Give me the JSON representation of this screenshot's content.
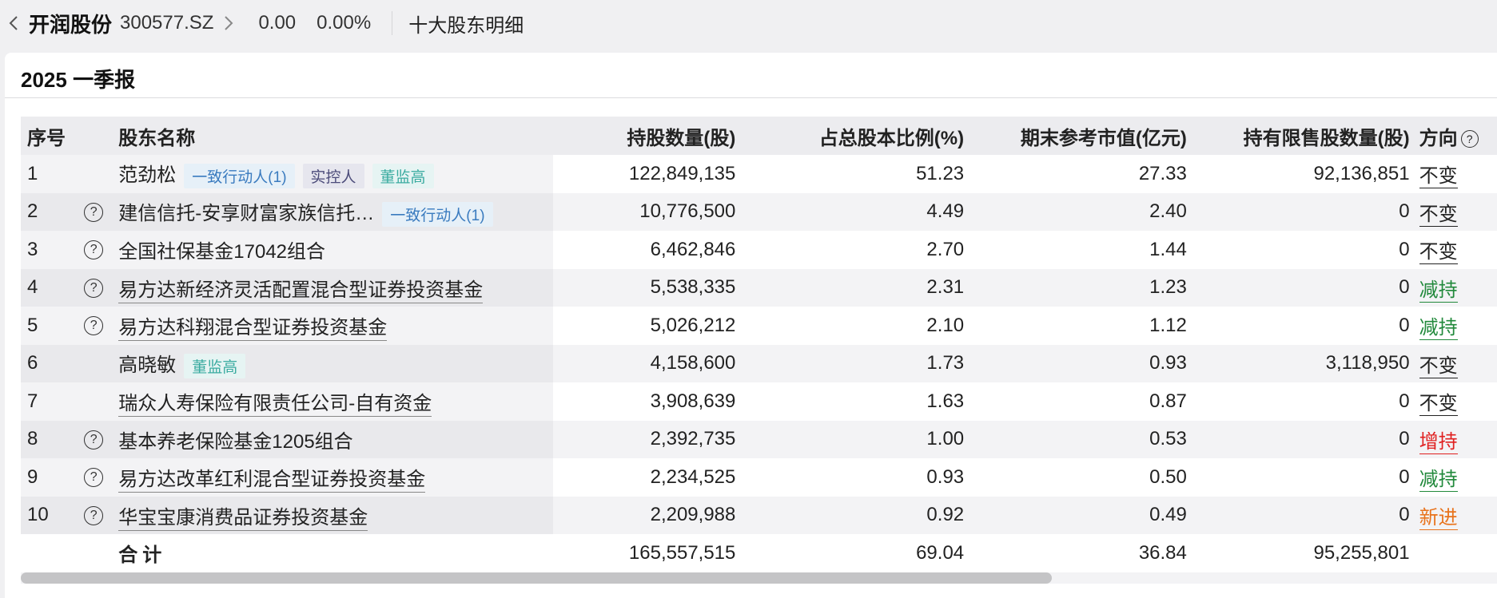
{
  "header": {
    "stock_name": "开润股份",
    "stock_code": "300577.SZ",
    "price": "0.00",
    "change_pct": "0.00%",
    "page_title": "十大股东明细"
  },
  "report": {
    "period": "2025 一季报"
  },
  "table": {
    "columns": [
      "序号",
      "",
      "股东名称",
      "持股数量(股)",
      "占总股本比例(%)",
      "期末参考市值(亿元)",
      "持有限售股数量(股)",
      "方向"
    ],
    "rows": [
      {
        "no": "1",
        "help": false,
        "name": "范劲松",
        "underline": false,
        "tags": [
          {
            "text": "一致行动人(1)",
            "kind": "act"
          },
          {
            "text": "实控人",
            "kind": "ctrl"
          },
          {
            "text": "董监高",
            "kind": "dir"
          }
        ],
        "shares": "122,849,135",
        "ratio": "51.23",
        "value": "27.33",
        "restricted": "92,136,851",
        "direction": "不变",
        "dir_kind": "same"
      },
      {
        "no": "2",
        "help": true,
        "name": "建信信托-安享财富家族信托…",
        "underline": false,
        "tags": [
          {
            "text": "一致行动人(1)",
            "kind": "act"
          }
        ],
        "shares": "10,776,500",
        "ratio": "4.49",
        "value": "2.40",
        "restricted": "0",
        "direction": "不变",
        "dir_kind": "same"
      },
      {
        "no": "3",
        "help": true,
        "name": "全国社保基金17042组合",
        "underline": false,
        "tags": [],
        "shares": "6,462,846",
        "ratio": "2.70",
        "value": "1.44",
        "restricted": "0",
        "direction": "不变",
        "dir_kind": "same"
      },
      {
        "no": "4",
        "help": true,
        "name": "易方达新经济灵活配置混合型证券投资基金",
        "underline": true,
        "tags": [],
        "shares": "5,538,335",
        "ratio": "2.31",
        "value": "1.23",
        "restricted": "0",
        "direction": "减持",
        "dir_kind": "dec"
      },
      {
        "no": "5",
        "help": true,
        "name": "易方达科翔混合型证券投资基金",
        "underline": true,
        "tags": [],
        "shares": "5,026,212",
        "ratio": "2.10",
        "value": "1.12",
        "restricted": "0",
        "direction": "减持",
        "dir_kind": "dec"
      },
      {
        "no": "6",
        "help": false,
        "name": "高晓敏",
        "underline": false,
        "tags": [
          {
            "text": "董监高",
            "kind": "dir"
          }
        ],
        "shares": "4,158,600",
        "ratio": "1.73",
        "value": "0.93",
        "restricted": "3,118,950",
        "direction": "不变",
        "dir_kind": "same"
      },
      {
        "no": "7",
        "help": false,
        "name": "瑞众人寿保险有限责任公司-自有资金",
        "underline": true,
        "tags": [],
        "shares": "3,908,639",
        "ratio": "1.63",
        "value": "0.87",
        "restricted": "0",
        "direction": "不变",
        "dir_kind": "same"
      },
      {
        "no": "8",
        "help": true,
        "name": "基本养老保险基金1205组合",
        "underline": false,
        "tags": [],
        "shares": "2,392,735",
        "ratio": "1.00",
        "value": "0.53",
        "restricted": "0",
        "direction": "增持",
        "dir_kind": "inc"
      },
      {
        "no": "9",
        "help": true,
        "name": "易方达改革红利混合型证券投资基金",
        "underline": true,
        "tags": [],
        "shares": "2,234,525",
        "ratio": "0.93",
        "value": "0.50",
        "restricted": "0",
        "direction": "减持",
        "dir_kind": "dec"
      },
      {
        "no": "10",
        "help": true,
        "name": "华宝宝康消费品证券投资基金",
        "underline": true,
        "tags": [],
        "shares": "2,209,988",
        "ratio": "0.92",
        "value": "0.49",
        "restricted": "0",
        "direction": "新进",
        "dir_kind": "new"
      }
    ],
    "total": {
      "label": "合计",
      "shares": "165,557,515",
      "ratio": "69.04",
      "value": "36.84",
      "restricted": "95,255,801"
    }
  },
  "colors": {
    "decrease": "#21893b",
    "increase": "#e02020",
    "new": "#e8731c"
  }
}
